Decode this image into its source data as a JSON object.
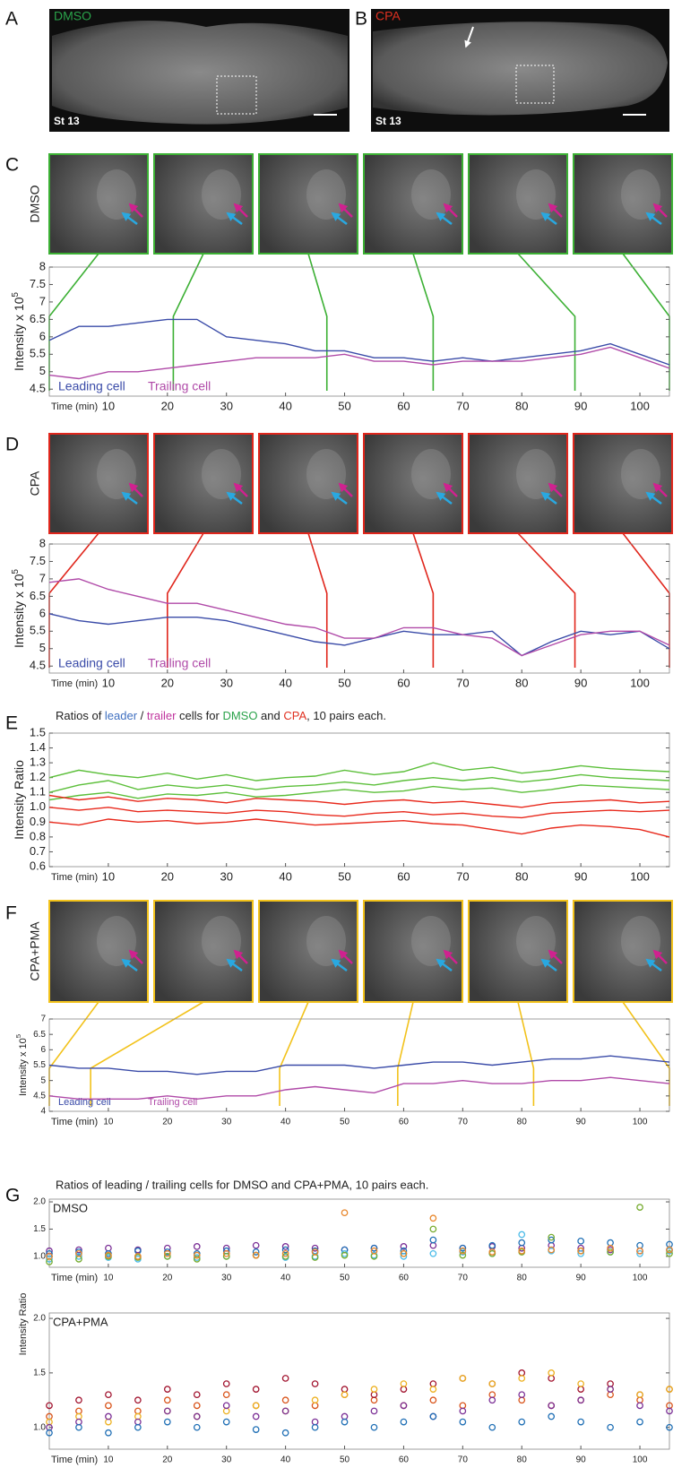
{
  "panels": {
    "A": {
      "label": "A",
      "condition": "DMSO",
      "stage": "St 13"
    },
    "B": {
      "label": "B",
      "condition": "CPA",
      "stage": "St 13"
    }
  },
  "chart_data": [
    {
      "type": "line",
      "panel": "C",
      "condition": "DMSO",
      "frame_color": "#3cb034",
      "frame_times": [
        0,
        21,
        47,
        65,
        89,
        105
      ],
      "ylabel": "Intensity  x 10",
      "ylabel_exponent": "5",
      "xlabel": "Time (min)",
      "x": [
        0,
        5,
        10,
        15,
        20,
        25,
        30,
        35,
        40,
        45,
        50,
        55,
        60,
        65,
        70,
        75,
        80,
        85,
        90,
        95,
        100,
        105
      ],
      "xlim": [
        0,
        105
      ],
      "xticks": [
        10,
        20,
        30,
        40,
        50,
        60,
        70,
        80,
        90,
        100
      ],
      "ylim": [
        4.3,
        8
      ],
      "yticks": [
        4.5,
        5,
        5.5,
        6,
        6.5,
        7,
        7.5,
        8
      ],
      "series": [
        {
          "name": "Leading cell",
          "color": "#3a4ba8",
          "values": [
            5.9,
            6.3,
            6.3,
            6.4,
            6.5,
            6.5,
            6.0,
            5.9,
            5.8,
            5.6,
            5.6,
            5.4,
            5.4,
            5.3,
            5.4,
            5.3,
            5.4,
            5.5,
            5.6,
            5.8,
            5.5,
            5.2
          ]
        },
        {
          "name": "Trailing cell",
          "color": "#b04aa8",
          "values": [
            4.9,
            4.8,
            5.0,
            5.0,
            5.1,
            5.2,
            5.3,
            5.4,
            5.4,
            5.4,
            5.5,
            5.3,
            5.3,
            5.2,
            5.3,
            5.3,
            5.3,
            5.4,
            5.5,
            5.7,
            5.4,
            5.1
          ]
        }
      ]
    },
    {
      "type": "line",
      "panel": "D",
      "condition": "CPA",
      "frame_color": "#e0261c",
      "frame_times": [
        0,
        20,
        47,
        65,
        89,
        105
      ],
      "ylabel": "Intensity  x 10",
      "ylabel_exponent": "5",
      "xlabel": "Time (min)",
      "x": [
        0,
        5,
        10,
        15,
        20,
        25,
        30,
        35,
        40,
        45,
        50,
        55,
        60,
        65,
        70,
        75,
        80,
        85,
        90,
        95,
        100,
        105
      ],
      "xlim": [
        0,
        105
      ],
      "xticks": [
        10,
        20,
        30,
        40,
        50,
        60,
        70,
        80,
        90,
        100
      ],
      "ylim": [
        4.3,
        8
      ],
      "yticks": [
        4.5,
        5,
        5.5,
        6,
        6.5,
        7,
        7.5,
        8
      ],
      "series": [
        {
          "name": "Leading cell",
          "color": "#3a4ba8",
          "values": [
            6.0,
            5.8,
            5.7,
            5.8,
            5.9,
            5.9,
            5.8,
            5.6,
            5.4,
            5.2,
            5.1,
            5.3,
            5.5,
            5.4,
            5.4,
            5.5,
            4.8,
            5.2,
            5.5,
            5.4,
            5.5,
            5.0
          ]
        },
        {
          "name": "Trailing cell",
          "color": "#b04aa8",
          "values": [
            6.9,
            7.0,
            6.7,
            6.5,
            6.3,
            6.3,
            6.1,
            5.9,
            5.7,
            5.6,
            5.3,
            5.3,
            5.6,
            5.6,
            5.4,
            5.3,
            4.8,
            5.1,
            5.4,
            5.5,
            5.5,
            5.1
          ]
        }
      ]
    },
    {
      "type": "line",
      "panel": "E",
      "title_parts": [
        {
          "text": "Ratios of "
        },
        {
          "text": "leader",
          "color": "#3f6fc0"
        },
        {
          "text": " / "
        },
        {
          "text": "trailer",
          "color": "#c0359e"
        },
        {
          "text": " cells for "
        },
        {
          "text": "DMSO",
          "color": "#2aa24a"
        },
        {
          "text": " and "
        },
        {
          "text": "CPA",
          "color": "#e03020"
        },
        {
          "text": ", 10 pairs each."
        }
      ],
      "ylabel": "Intensity Ratio",
      "xlabel": "Time (min)",
      "x": [
        0,
        5,
        10,
        15,
        20,
        25,
        30,
        35,
        40,
        45,
        50,
        55,
        60,
        65,
        70,
        75,
        80,
        85,
        90,
        95,
        100,
        105
      ],
      "xlim": [
        0,
        105
      ],
      "xticks": [
        10,
        20,
        30,
        40,
        50,
        60,
        70,
        80,
        90,
        100
      ],
      "ylim": [
        0.6,
        1.5
      ],
      "yticks": [
        0.6,
        0.7,
        0.8,
        0.9,
        {
          "value": 1,
          "label": "1.0"
        },
        1.1,
        1.2,
        1.3,
        1.4,
        1.5
      ],
      "series": [
        {
          "color": "#5cbf3a",
          "values": [
            1.1,
            1.15,
            1.18,
            1.12,
            1.15,
            1.13,
            1.15,
            1.12,
            1.14,
            1.15,
            1.17,
            1.15,
            1.18,
            1.2,
            1.18,
            1.2,
            1.17,
            1.19,
            1.22,
            1.2,
            1.19,
            1.18
          ]
        },
        {
          "color": "#5cbf3a",
          "values": [
            1.05,
            1.08,
            1.1,
            1.06,
            1.09,
            1.08,
            1.1,
            1.07,
            1.08,
            1.1,
            1.12,
            1.1,
            1.11,
            1.14,
            1.12,
            1.13,
            1.1,
            1.12,
            1.15,
            1.14,
            1.13,
            1.12
          ]
        },
        {
          "color": "#5cbf3a",
          "values": [
            1.2,
            1.25,
            1.22,
            1.2,
            1.23,
            1.19,
            1.22,
            1.18,
            1.2,
            1.21,
            1.25,
            1.22,
            1.24,
            1.3,
            1.25,
            1.27,
            1.23,
            1.25,
            1.28,
            1.26,
            1.25,
            1.24
          ]
        },
        {
          "color": "#e8291c",
          "values": [
            1.0,
            0.98,
            1.0,
            0.97,
            0.98,
            0.97,
            0.96,
            0.98,
            0.97,
            0.95,
            0.94,
            0.96,
            0.97,
            0.95,
            0.96,
            0.94,
            0.93,
            0.96,
            0.97,
            0.98,
            0.97,
            0.98
          ]
        },
        {
          "color": "#e8291c",
          "values": [
            0.9,
            0.88,
            0.92,
            0.9,
            0.91,
            0.89,
            0.9,
            0.92,
            0.9,
            0.88,
            0.89,
            0.9,
            0.91,
            0.89,
            0.88,
            0.85,
            0.82,
            0.86,
            0.88,
            0.87,
            0.85,
            0.8
          ]
        },
        {
          "color": "#e8291c",
          "values": [
            1.08,
            1.05,
            1.07,
            1.04,
            1.06,
            1.05,
            1.03,
            1.06,
            1.05,
            1.04,
            1.02,
            1.04,
            1.05,
            1.03,
            1.04,
            1.02,
            1.0,
            1.03,
            1.04,
            1.05,
            1.03,
            1.04
          ]
        }
      ]
    },
    {
      "type": "line",
      "panel": "F",
      "condition": "CPA+PMA",
      "frame_color": "#f2c21b",
      "frame_times": [
        0,
        7,
        39,
        59,
        82,
        105
      ],
      "ylabel": "Intensity  x 10",
      "ylabel_exponent": "5",
      "xlabel": "Time (min)",
      "x": [
        0,
        5,
        10,
        15,
        20,
        25,
        30,
        35,
        40,
        45,
        50,
        55,
        60,
        65,
        70,
        75,
        80,
        85,
        90,
        95,
        100,
        105
      ],
      "xlim": [
        0,
        105
      ],
      "xticks": [
        10,
        20,
        30,
        40,
        50,
        60,
        70,
        80,
        90,
        100
      ],
      "ylim": [
        4,
        7
      ],
      "yticks": [
        4,
        4.5,
        5,
        5.5,
        6,
        6.5,
        7
      ],
      "series": [
        {
          "name": "Leading cell",
          "color": "#3a4ba8",
          "values": [
            5.5,
            5.4,
            5.4,
            5.3,
            5.3,
            5.2,
            5.3,
            5.3,
            5.5,
            5.5,
            5.5,
            5.4,
            5.5,
            5.6,
            5.6,
            5.5,
            5.6,
            5.7,
            5.7,
            5.8,
            5.7,
            5.6
          ]
        },
        {
          "name": "Trailing cell",
          "color": "#b04aa8",
          "values": [
            4.5,
            4.4,
            4.4,
            4.4,
            4.5,
            4.4,
            4.5,
            4.5,
            4.7,
            4.8,
            4.7,
            4.6,
            4.9,
            4.9,
            5.0,
            4.9,
            4.9,
            5.0,
            5.0,
            5.1,
            5.0,
            4.9
          ]
        }
      ]
    },
    {
      "type": "scatter",
      "panel": "G",
      "title": "Ratios of leading / trailing cells for DMSO and CPA+PMA, 10 pairs each.",
      "condition": "DMSO",
      "ylabel": "Intensity Ratio",
      "xlabel": "Time (min)",
      "x": [
        0,
        5,
        10,
        15,
        20,
        25,
        30,
        35,
        40,
        45,
        50,
        55,
        60,
        65,
        70,
        75,
        80,
        85,
        90,
        95,
        100,
        105
      ],
      "xlim": [
        0,
        105
      ],
      "xticks": [
        10,
        20,
        30,
        40,
        50,
        60,
        70,
        80,
        90,
        100
      ],
      "ylim": [
        0.8,
        2.05
      ],
      "yticks": [
        {
          "value": 1,
          "label": "1.0"
        },
        1.5,
        {
          "value": 2,
          "label": "2.0"
        }
      ],
      "series": [
        {
          "color": "#7b2f96",
          "values": [
            1.1,
            1.12,
            1.15,
            1.12,
            1.15,
            1.18,
            1.15,
            1.2,
            1.18,
            1.15,
            1.12,
            1.15,
            1.18,
            1.2,
            1.15,
            1.18,
            1.15,
            1.2,
            1.15,
            1.12,
            1.1,
            1.12
          ]
        },
        {
          "color": "#1f6fb5",
          "values": [
            1.05,
            1.08,
            1.05,
            1.1,
            1.08,
            1.05,
            1.1,
            1.08,
            1.12,
            1.1,
            1.12,
            1.15,
            1.1,
            1.3,
            1.15,
            1.2,
            1.25,
            1.3,
            1.28,
            1.25,
            1.2,
            1.22
          ]
        },
        {
          "color": "#4bbbe8",
          "values": [
            0.95,
            1.0,
            0.98,
            0.95,
            1.0,
            0.98,
            1.0,
            1.02,
            0.98,
            1.0,
            1.05,
            1.02,
            1.0,
            1.05,
            1.08,
            1.05,
            1.4,
            1.1,
            1.05,
            1.08,
            1.05,
            1.1
          ]
        },
        {
          "color": "#77ac30",
          "values": [
            0.9,
            0.95,
            1.0,
            0.98,
            1.0,
            0.95,
            1.0,
            1.02,
            1.0,
            0.98,
            1.02,
            1.0,
            1.05,
            1.5,
            1.02,
            1.05,
            1.08,
            1.35,
            1.1,
            1.08,
            1.9,
            1.05
          ]
        },
        {
          "color": "#e8862b",
          "values": [
            1.0,
            1.05,
            1.02,
            1.0,
            1.05,
            1.02,
            1.05,
            1.02,
            1.05,
            1.08,
            1.8,
            1.1,
            1.05,
            1.7,
            1.1,
            1.08,
            1.1,
            1.12,
            1.1,
            1.15,
            1.1,
            1.12
          ]
        }
      ]
    },
    {
      "type": "scatter",
      "condition": "CPA+PMA",
      "xlabel": "Time (min)",
      "x": [
        0,
        5,
        10,
        15,
        20,
        25,
        30,
        35,
        40,
        45,
        50,
        55,
        60,
        65,
        70,
        75,
        80,
        85,
        90,
        95,
        100,
        105
      ],
      "xlim": [
        0,
        105
      ],
      "xticks": [
        10,
        20,
        30,
        40,
        50,
        60,
        70,
        80,
        90,
        100
      ],
      "ylim": [
        0.8,
        2.05
      ],
      "yticks": [
        {
          "value": 1,
          "label": "1.0"
        },
        1.5,
        {
          "value": 2,
          "label": "2.0"
        }
      ],
      "series": [
        {
          "color": "#d95319",
          "values": [
            1.1,
            1.15,
            1.2,
            1.15,
            1.25,
            1.2,
            1.3,
            1.2,
            1.25,
            1.2,
            1.3,
            1.25,
            1.2,
            1.25,
            1.2,
            1.3,
            1.25,
            1.2,
            1.25,
            1.3,
            1.25,
            1.2
          ]
        },
        {
          "color": "#a2142f",
          "values": [
            1.2,
            1.25,
            1.3,
            1.25,
            1.35,
            1.3,
            1.4,
            1.35,
            1.45,
            1.4,
            1.35,
            1.3,
            1.35,
            1.4,
            1.45,
            1.4,
            1.5,
            1.45,
            1.35,
            1.4,
            1.3,
            1.35
          ]
        },
        {
          "color": "#edb120",
          "values": [
            1.05,
            1.1,
            1.05,
            1.1,
            1.15,
            1.1,
            1.15,
            1.2,
            1.15,
            1.25,
            1.3,
            1.35,
            1.4,
            1.35,
            1.45,
            1.4,
            1.45,
            1.5,
            1.4,
            1.35,
            1.3,
            1.35
          ]
        },
        {
          "color": "#7b2f96",
          "values": [
            1.0,
            1.05,
            1.1,
            1.05,
            1.15,
            1.1,
            1.2,
            1.1,
            1.15,
            1.05,
            1.1,
            1.15,
            1.2,
            1.1,
            1.15,
            1.25,
            1.3,
            1.2,
            1.25,
            1.35,
            1.2,
            1.15
          ]
        },
        {
          "color": "#1f6fb5",
          "values": [
            0.95,
            1.0,
            0.95,
            1.0,
            1.05,
            1.0,
            1.05,
            0.98,
            0.95,
            1.0,
            1.05,
            1.0,
            1.05,
            1.1,
            1.05,
            1.0,
            1.05,
            1.1,
            1.05,
            1.0,
            1.05,
            1.0
          ]
        }
      ]
    }
  ]
}
